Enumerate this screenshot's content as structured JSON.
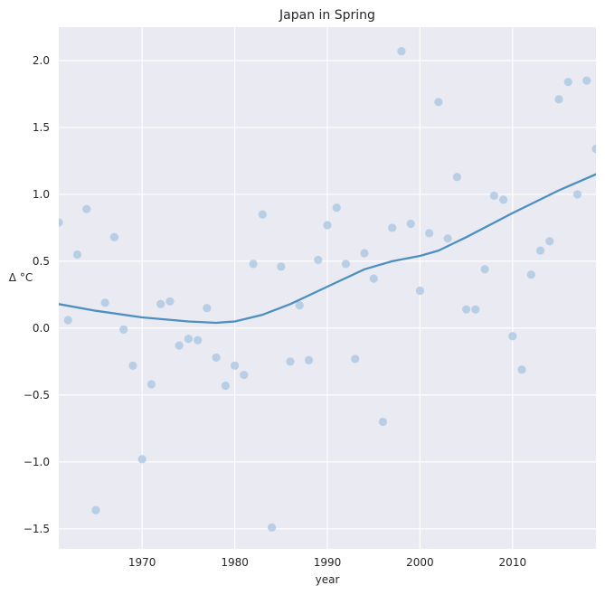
{
  "chart_data": {
    "type": "scatter",
    "title": "Japan in Spring",
    "xlabel": "year",
    "ylabel": "Δ °C",
    "xlim": [
      1961,
      2019
    ],
    "ylim": [
      -1.65,
      2.25
    ],
    "grid": true,
    "x_ticks": [
      1970,
      1980,
      1990,
      2000,
      2010
    ],
    "y_ticks": [
      -1.5,
      -1.0,
      -0.5,
      0.0,
      0.5,
      1.0,
      1.5,
      2.0
    ],
    "y_tick_labels": [
      "−1.5",
      "−1.0",
      "−0.5",
      "0.0",
      "0.5",
      "1.0",
      "1.5",
      "2.0"
    ],
    "colors": {
      "background": "#eaeaf2",
      "grid": "#ffffff",
      "points": "#a6c4e0",
      "trend": "#4c8fc0"
    },
    "series": [
      {
        "kind": "points",
        "x": [
          1961,
          1962,
          1963,
          1964,
          1965,
          1966,
          1967,
          1968,
          1969,
          1970,
          1971,
          1972,
          1973,
          1974,
          1975,
          1976,
          1977,
          1978,
          1979,
          1980,
          1981,
          1982,
          1983,
          1984,
          1985,
          1986,
          1987,
          1988,
          1989,
          1990,
          1991,
          1992,
          1993,
          1994,
          1995,
          1996,
          1997,
          1998,
          1999,
          2000,
          2001,
          2002,
          2003,
          2004,
          2005,
          2006,
          2007,
          2008,
          2009,
          2010,
          2011,
          2012,
          2013,
          2014,
          2015,
          2016,
          2017,
          2018,
          2019
        ],
        "y": [
          0.79,
          0.06,
          0.55,
          0.89,
          -1.36,
          0.19,
          0.68,
          -0.01,
          -0.28,
          -0.98,
          -0.42,
          0.18,
          0.2,
          -0.13,
          -0.08,
          -0.09,
          0.15,
          -0.22,
          -0.43,
          -0.28,
          -0.35,
          0.48,
          0.85,
          -1.49,
          0.46,
          -0.25,
          0.17,
          -0.24,
          0.51,
          0.77,
          0.9,
          0.48,
          -0.23,
          0.56,
          0.37,
          -0.7,
          0.75,
          2.07,
          0.78,
          0.28,
          0.71,
          1.69,
          0.67,
          1.13,
          0.14,
          0.14,
          0.44,
          0.99,
          0.96,
          -0.06,
          -0.31,
          0.4,
          0.58,
          0.65,
          1.71,
          1.84,
          1.0,
          1.85,
          1.34
        ]
      },
      {
        "kind": "trend",
        "x": [
          1961,
          1965,
          1970,
          1975,
          1978,
          1980,
          1983,
          1986,
          1990,
          1994,
          1997,
          2000,
          2002,
          2005,
          2010,
          2015,
          2019
        ],
        "y": [
          0.18,
          0.13,
          0.08,
          0.05,
          0.04,
          0.05,
          0.1,
          0.18,
          0.31,
          0.44,
          0.5,
          0.54,
          0.58,
          0.68,
          0.86,
          1.03,
          1.15
        ]
      }
    ]
  }
}
